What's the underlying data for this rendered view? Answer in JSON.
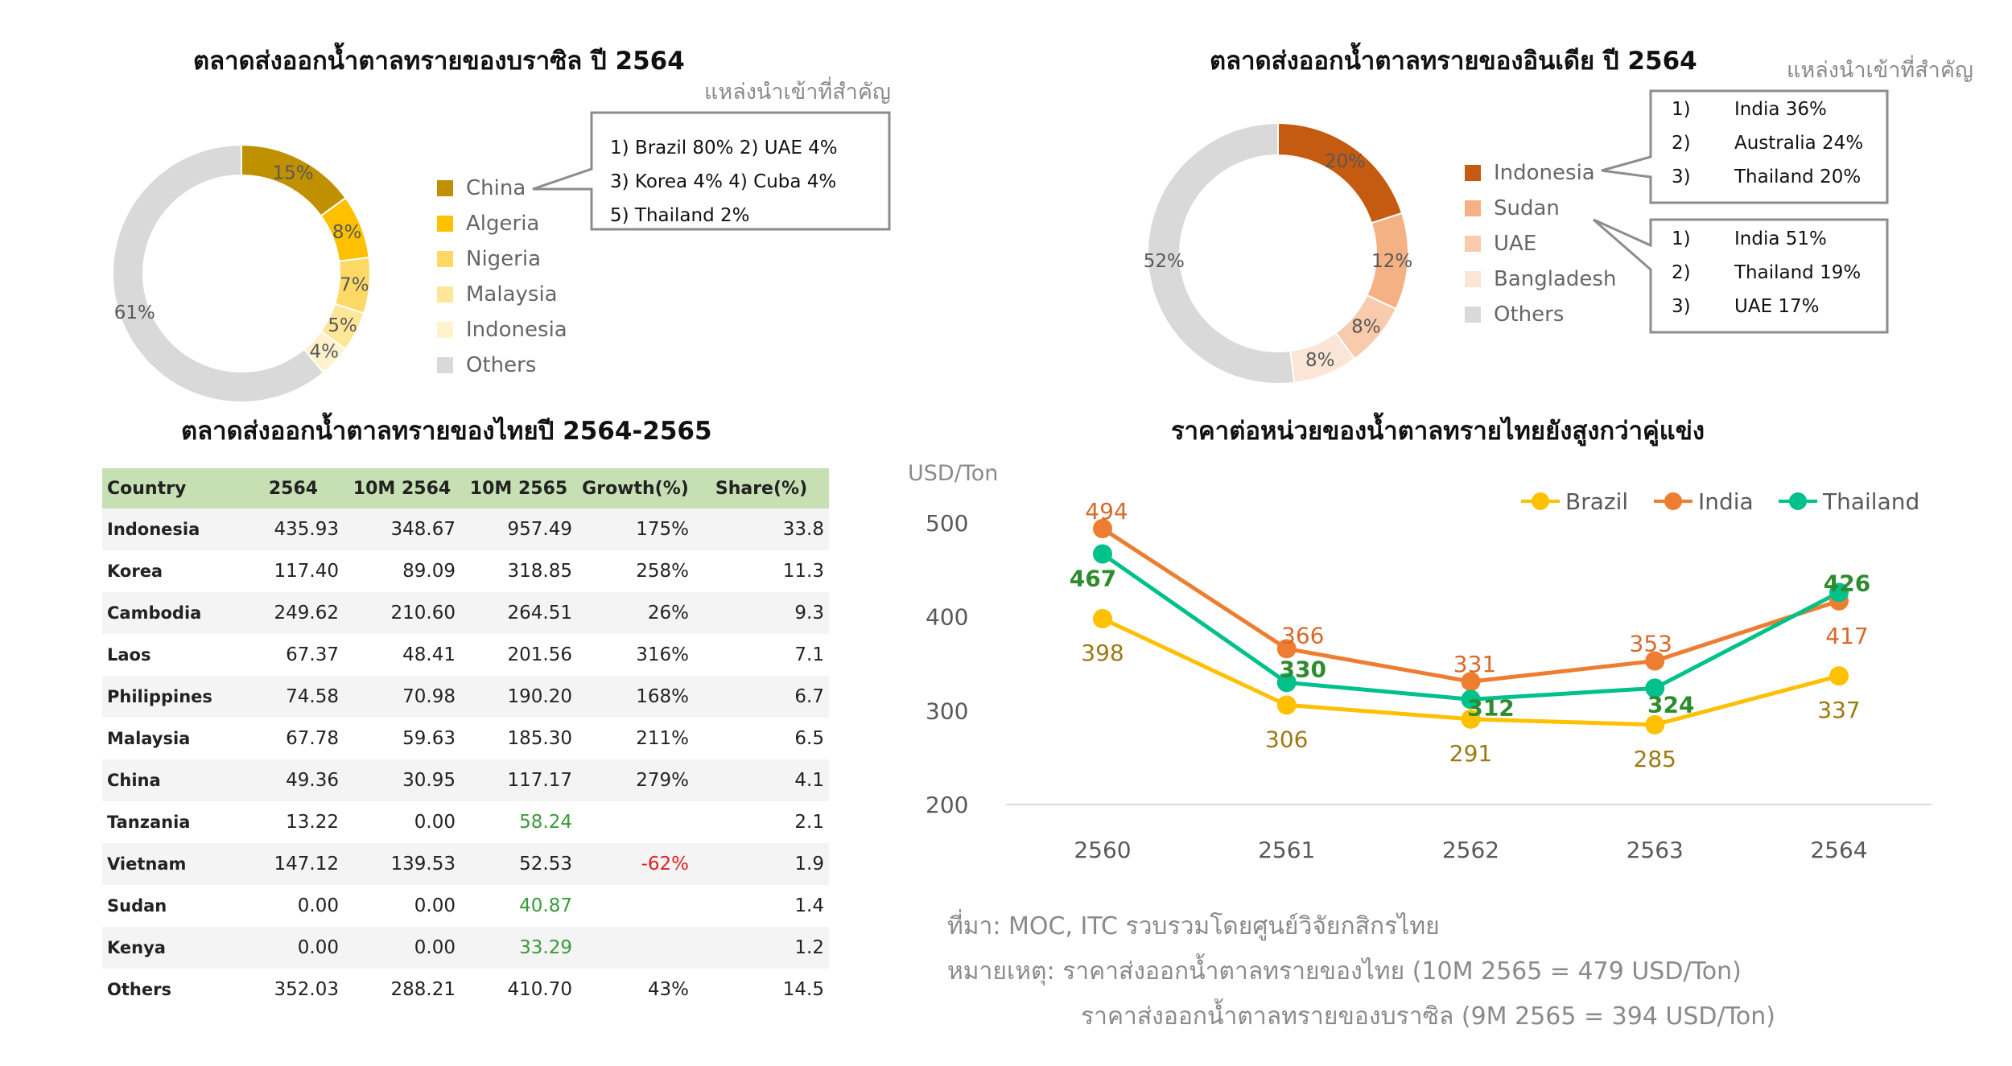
{
  "brazil": {
    "title": "ตลาดส่งออกน้ำตาลทรายของบราซิล ปี 2564",
    "note": "แหล่งนำเข้าที่สำคัญ",
    "legend": [
      "China",
      "Algeria",
      "Nigeria",
      "Malaysia",
      "Indonesia",
      "Others"
    ],
    "callout": [
      "1) Brazil 80%   2) UAE 4%",
      "3) Korea 4%    4)  Cuba 4%",
      "5) Thailand 2%"
    ]
  },
  "india": {
    "title": "ตลาดส่งออกน้ำตาลทรายของอินเดีย ปี 2564",
    "note": "แหล่งนำเข้าที่สำคัญ",
    "legend": [
      "Indonesia",
      "Sudan",
      "UAE",
      "Bangladesh",
      "Others"
    ],
    "callout1": [
      [
        "1)",
        "India 36%"
      ],
      [
        "2)",
        "Australia 24%"
      ],
      [
        "3)",
        "Thailand 20%"
      ]
    ],
    "callout2": [
      [
        "1)",
        "India 51%"
      ],
      [
        "2)",
        "Thailand 19%"
      ],
      [
        "3)",
        "UAE 17%"
      ]
    ]
  },
  "table": {
    "title": "ตลาดส่งออกน้ำตาลทรายของไทยปี 2564-2565",
    "headers": [
      "Country",
      "2564",
      "10M 2564",
      "10M 2565",
      "Growth(%)",
      "Share(%)"
    ],
    "rows": [
      [
        "Indonesia",
        "435.93",
        "348.67",
        "957.49",
        "175%",
        "33.8"
      ],
      [
        "Korea",
        "117.40",
        "89.09",
        "318.85",
        "258%",
        "11.3"
      ],
      [
        "Cambodia",
        "249.62",
        "210.60",
        "264.51",
        "26%",
        "9.3"
      ],
      [
        "Laos",
        "67.37",
        "48.41",
        "201.56",
        "316%",
        "7.1"
      ],
      [
        "Philippines",
        "74.58",
        "70.98",
        "190.20",
        "168%",
        "6.7"
      ],
      [
        "Malaysia",
        "67.78",
        "59.63",
        "185.30",
        "211%",
        "6.5"
      ],
      [
        "China",
        "49.36",
        "30.95",
        "117.17",
        "279%",
        "4.1"
      ],
      [
        "Tanzania",
        "13.22",
        "0.00",
        "58.24",
        "",
        "2.1"
      ],
      [
        "Vietnam",
        "147.12",
        "139.53",
        "52.53",
        "-62%",
        "1.9"
      ],
      [
        "Sudan",
        "0.00",
        "0.00",
        "40.87",
        "",
        "1.4"
      ],
      [
        "Kenya",
        "0.00",
        "0.00",
        "33.29",
        "",
        "1.2"
      ],
      [
        "Others",
        "352.03",
        "288.21",
        "410.70",
        "43%",
        "14.5"
      ]
    ],
    "green_cells": [
      [
        7,
        3
      ],
      [
        9,
        3
      ],
      [
        10,
        3
      ]
    ],
    "red_cells": [
      [
        8,
        4
      ]
    ]
  },
  "price": {
    "title": "ราคาต่อหน่วยของน้ำตาลทรายไทยยังสูงกว่าคู่แข่ง",
    "footnote_1": "ที่มา: MOC, ITC รวบรวมโดยศูนย์วิจัยกสิกรไทย",
    "footnote_2": "หมายเหตุ: ราคาส่งออกน้ำตาลทรายของไทย (10M 2565 = 479 USD/Ton)",
    "footnote_3": "ราคาส่งออกน้ำตาลทรายของบราซิล (9M 2565 = 394 USD/Ton)"
  },
  "chart_data": [
    {
      "type": "pie",
      "title": "ตลาดส่งออกน้ำตาลทรายของบราซิล ปี 2564",
      "categories": [
        "China",
        "Algeria",
        "Nigeria",
        "Malaysia",
        "Indonesia",
        "Others"
      ],
      "values": [
        15,
        8,
        7,
        5,
        4,
        61
      ],
      "labels": [
        "15%",
        "8%",
        "7%",
        "5%",
        "4%",
        "61%"
      ],
      "colors": [
        "#bf9000",
        "#ffc000",
        "#ffd966",
        "#ffe699",
        "#fff2cc",
        "#d9d9d9"
      ],
      "legend": "right"
    },
    {
      "type": "pie",
      "title": "ตลาดส่งออกน้ำตาลทรายของอินเดีย ปี 2564",
      "categories": [
        "Indonesia",
        "Sudan",
        "UAE",
        "Bangladesh",
        "Others"
      ],
      "values": [
        20,
        12,
        8,
        8,
        52
      ],
      "labels": [
        "20%",
        "12%",
        "8%",
        "8%",
        "52%"
      ],
      "colors": [
        "#c55a11",
        "#f4b183",
        "#f8cbad",
        "#fbe5d6",
        "#d9d9d9"
      ],
      "legend": "right"
    },
    {
      "type": "line",
      "title": "ราคาต่อหน่วยของน้ำตาลทรายไทยยังสูงกว่าคู่แข่ง",
      "ylabel": "USD/Ton",
      "x": [
        "2560",
        "2561",
        "2562",
        "2563",
        "2564"
      ],
      "ylim": [
        200,
        500
      ],
      "yticks": [
        200,
        300,
        400,
        500
      ],
      "series": [
        {
          "name": "Brazil",
          "values": [
            398,
            306,
            291,
            285,
            337
          ],
          "color": "#ffc000"
        },
        {
          "name": "India",
          "values": [
            494,
            366,
            331,
            353,
            417
          ],
          "color": "#ed7d31"
        },
        {
          "name": "Thailand",
          "values": [
            467,
            330,
            312,
            324,
            426
          ],
          "color": "#00c08b"
        }
      ],
      "legend": "top-right",
      "grid": false
    }
  ]
}
